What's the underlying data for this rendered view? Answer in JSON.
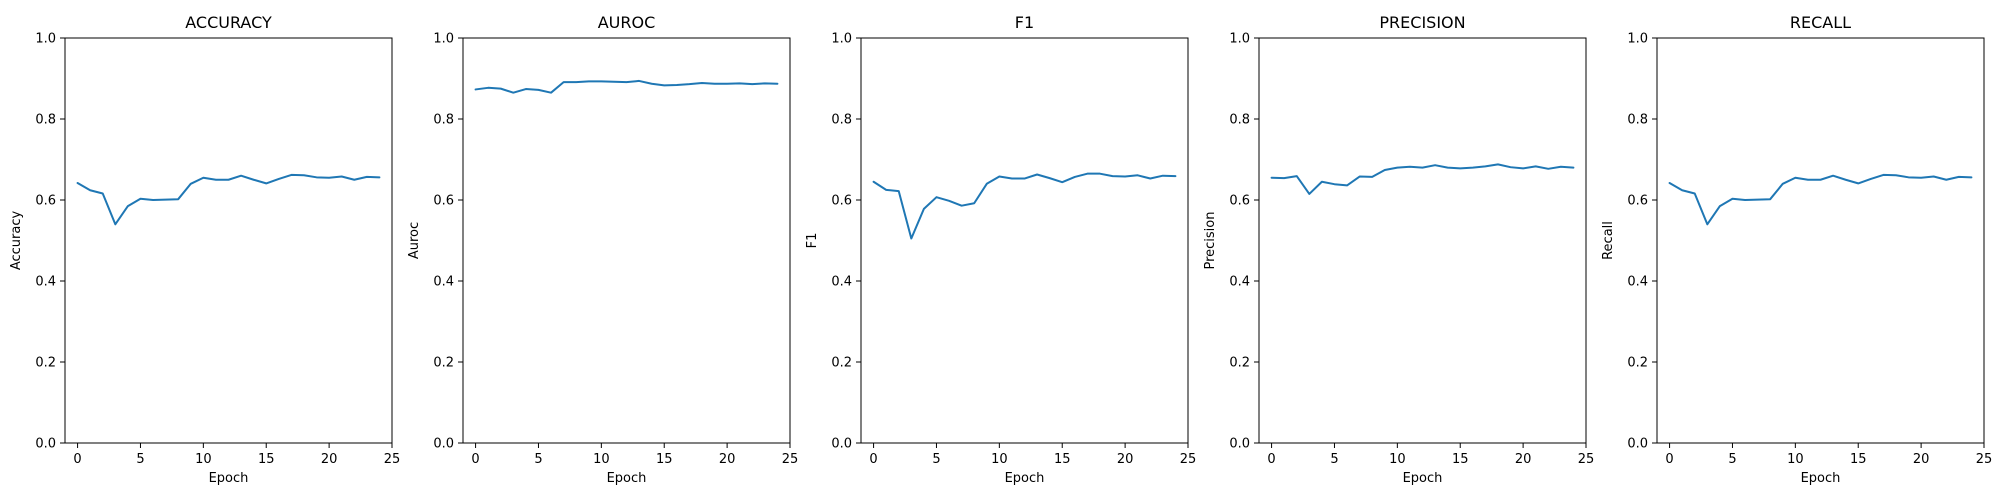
{
  "style": {
    "line_color": "#1f77b4",
    "axis_color": "#000000",
    "background": "#ffffff"
  },
  "chart_data": [
    {
      "type": "line",
      "title": "ACCURACY",
      "xlabel": "Epoch",
      "ylabel": "Accuracy",
      "xlim": [
        -1,
        25
      ],
      "ylim": [
        0.0,
        1.0
      ],
      "xticks": [
        0,
        5,
        10,
        15,
        20,
        25
      ],
      "yticks": [
        0.0,
        0.2,
        0.4,
        0.6,
        0.8,
        1.0
      ],
      "grid": false,
      "x": [
        0,
        1,
        2,
        3,
        4,
        5,
        6,
        7,
        8,
        9,
        10,
        11,
        12,
        13,
        14,
        15,
        16,
        17,
        18,
        19,
        20,
        21,
        22,
        23,
        24
      ],
      "values": [
        0.642,
        0.624,
        0.616,
        0.54,
        0.585,
        0.603,
        0.6,
        0.601,
        0.602,
        0.64,
        0.655,
        0.65,
        0.65,
        0.66,
        0.65,
        0.641,
        0.652,
        0.662,
        0.661,
        0.656,
        0.655,
        0.658,
        0.65,
        0.657,
        0.656
      ]
    },
    {
      "type": "line",
      "title": "AUROC",
      "xlabel": "Epoch",
      "ylabel": "Auroc",
      "xlim": [
        -1,
        25
      ],
      "ylim": [
        0.0,
        1.0
      ],
      "xticks": [
        0,
        5,
        10,
        15,
        20,
        25
      ],
      "yticks": [
        0.0,
        0.2,
        0.4,
        0.6,
        0.8,
        1.0
      ],
      "grid": false,
      "x": [
        0,
        1,
        2,
        3,
        4,
        5,
        6,
        7,
        8,
        9,
        10,
        11,
        12,
        13,
        14,
        15,
        16,
        17,
        18,
        19,
        20,
        21,
        22,
        23,
        24
      ],
      "values": [
        0.873,
        0.877,
        0.875,
        0.865,
        0.874,
        0.872,
        0.865,
        0.891,
        0.891,
        0.893,
        0.893,
        0.892,
        0.891,
        0.894,
        0.887,
        0.883,
        0.884,
        0.886,
        0.889,
        0.887,
        0.887,
        0.888,
        0.886,
        0.888,
        0.887
      ]
    },
    {
      "type": "line",
      "title": "F1",
      "xlabel": "Epoch",
      "ylabel": "F1",
      "xlim": [
        -1,
        25
      ],
      "ylim": [
        0.0,
        1.0
      ],
      "xticks": [
        0,
        5,
        10,
        15,
        20,
        25
      ],
      "yticks": [
        0.0,
        0.2,
        0.4,
        0.6,
        0.8,
        1.0
      ],
      "grid": false,
      "x": [
        0,
        1,
        2,
        3,
        4,
        5,
        6,
        7,
        8,
        9,
        10,
        11,
        12,
        13,
        14,
        15,
        16,
        17,
        18,
        19,
        20,
        21,
        22,
        23,
        24
      ],
      "values": [
        0.645,
        0.625,
        0.622,
        0.505,
        0.578,
        0.607,
        0.598,
        0.586,
        0.592,
        0.64,
        0.658,
        0.653,
        0.653,
        0.663,
        0.654,
        0.644,
        0.657,
        0.665,
        0.665,
        0.659,
        0.658,
        0.661,
        0.653,
        0.66,
        0.659
      ]
    },
    {
      "type": "line",
      "title": "PRECISION",
      "xlabel": "Epoch",
      "ylabel": "Precision",
      "xlim": [
        -1,
        25
      ],
      "ylim": [
        0.0,
        1.0
      ],
      "xticks": [
        0,
        5,
        10,
        15,
        20,
        25
      ],
      "yticks": [
        0.0,
        0.2,
        0.4,
        0.6,
        0.8,
        1.0
      ],
      "grid": false,
      "x": [
        0,
        1,
        2,
        3,
        4,
        5,
        6,
        7,
        8,
        9,
        10,
        11,
        12,
        13,
        14,
        15,
        16,
        17,
        18,
        19,
        20,
        21,
        22,
        23,
        24
      ],
      "values": [
        0.655,
        0.654,
        0.659,
        0.615,
        0.645,
        0.639,
        0.636,
        0.658,
        0.657,
        0.674,
        0.68,
        0.682,
        0.68,
        0.686,
        0.68,
        0.678,
        0.68,
        0.683,
        0.688,
        0.681,
        0.678,
        0.683,
        0.677,
        0.682,
        0.68
      ]
    },
    {
      "type": "line",
      "title": "RECALL",
      "xlabel": "Epoch",
      "ylabel": "Recall",
      "xlim": [
        -1,
        25
      ],
      "ylim": [
        0.0,
        1.0
      ],
      "xticks": [
        0,
        5,
        10,
        15,
        20,
        25
      ],
      "yticks": [
        0.0,
        0.2,
        0.4,
        0.6,
        0.8,
        1.0
      ],
      "grid": false,
      "x": [
        0,
        1,
        2,
        3,
        4,
        5,
        6,
        7,
        8,
        9,
        10,
        11,
        12,
        13,
        14,
        15,
        16,
        17,
        18,
        19,
        20,
        21,
        22,
        23,
        24
      ],
      "values": [
        0.642,
        0.624,
        0.616,
        0.54,
        0.585,
        0.603,
        0.6,
        0.601,
        0.602,
        0.64,
        0.655,
        0.65,
        0.65,
        0.66,
        0.65,
        0.641,
        0.652,
        0.662,
        0.661,
        0.656,
        0.655,
        0.658,
        0.65,
        0.657,
        0.656
      ]
    }
  ]
}
